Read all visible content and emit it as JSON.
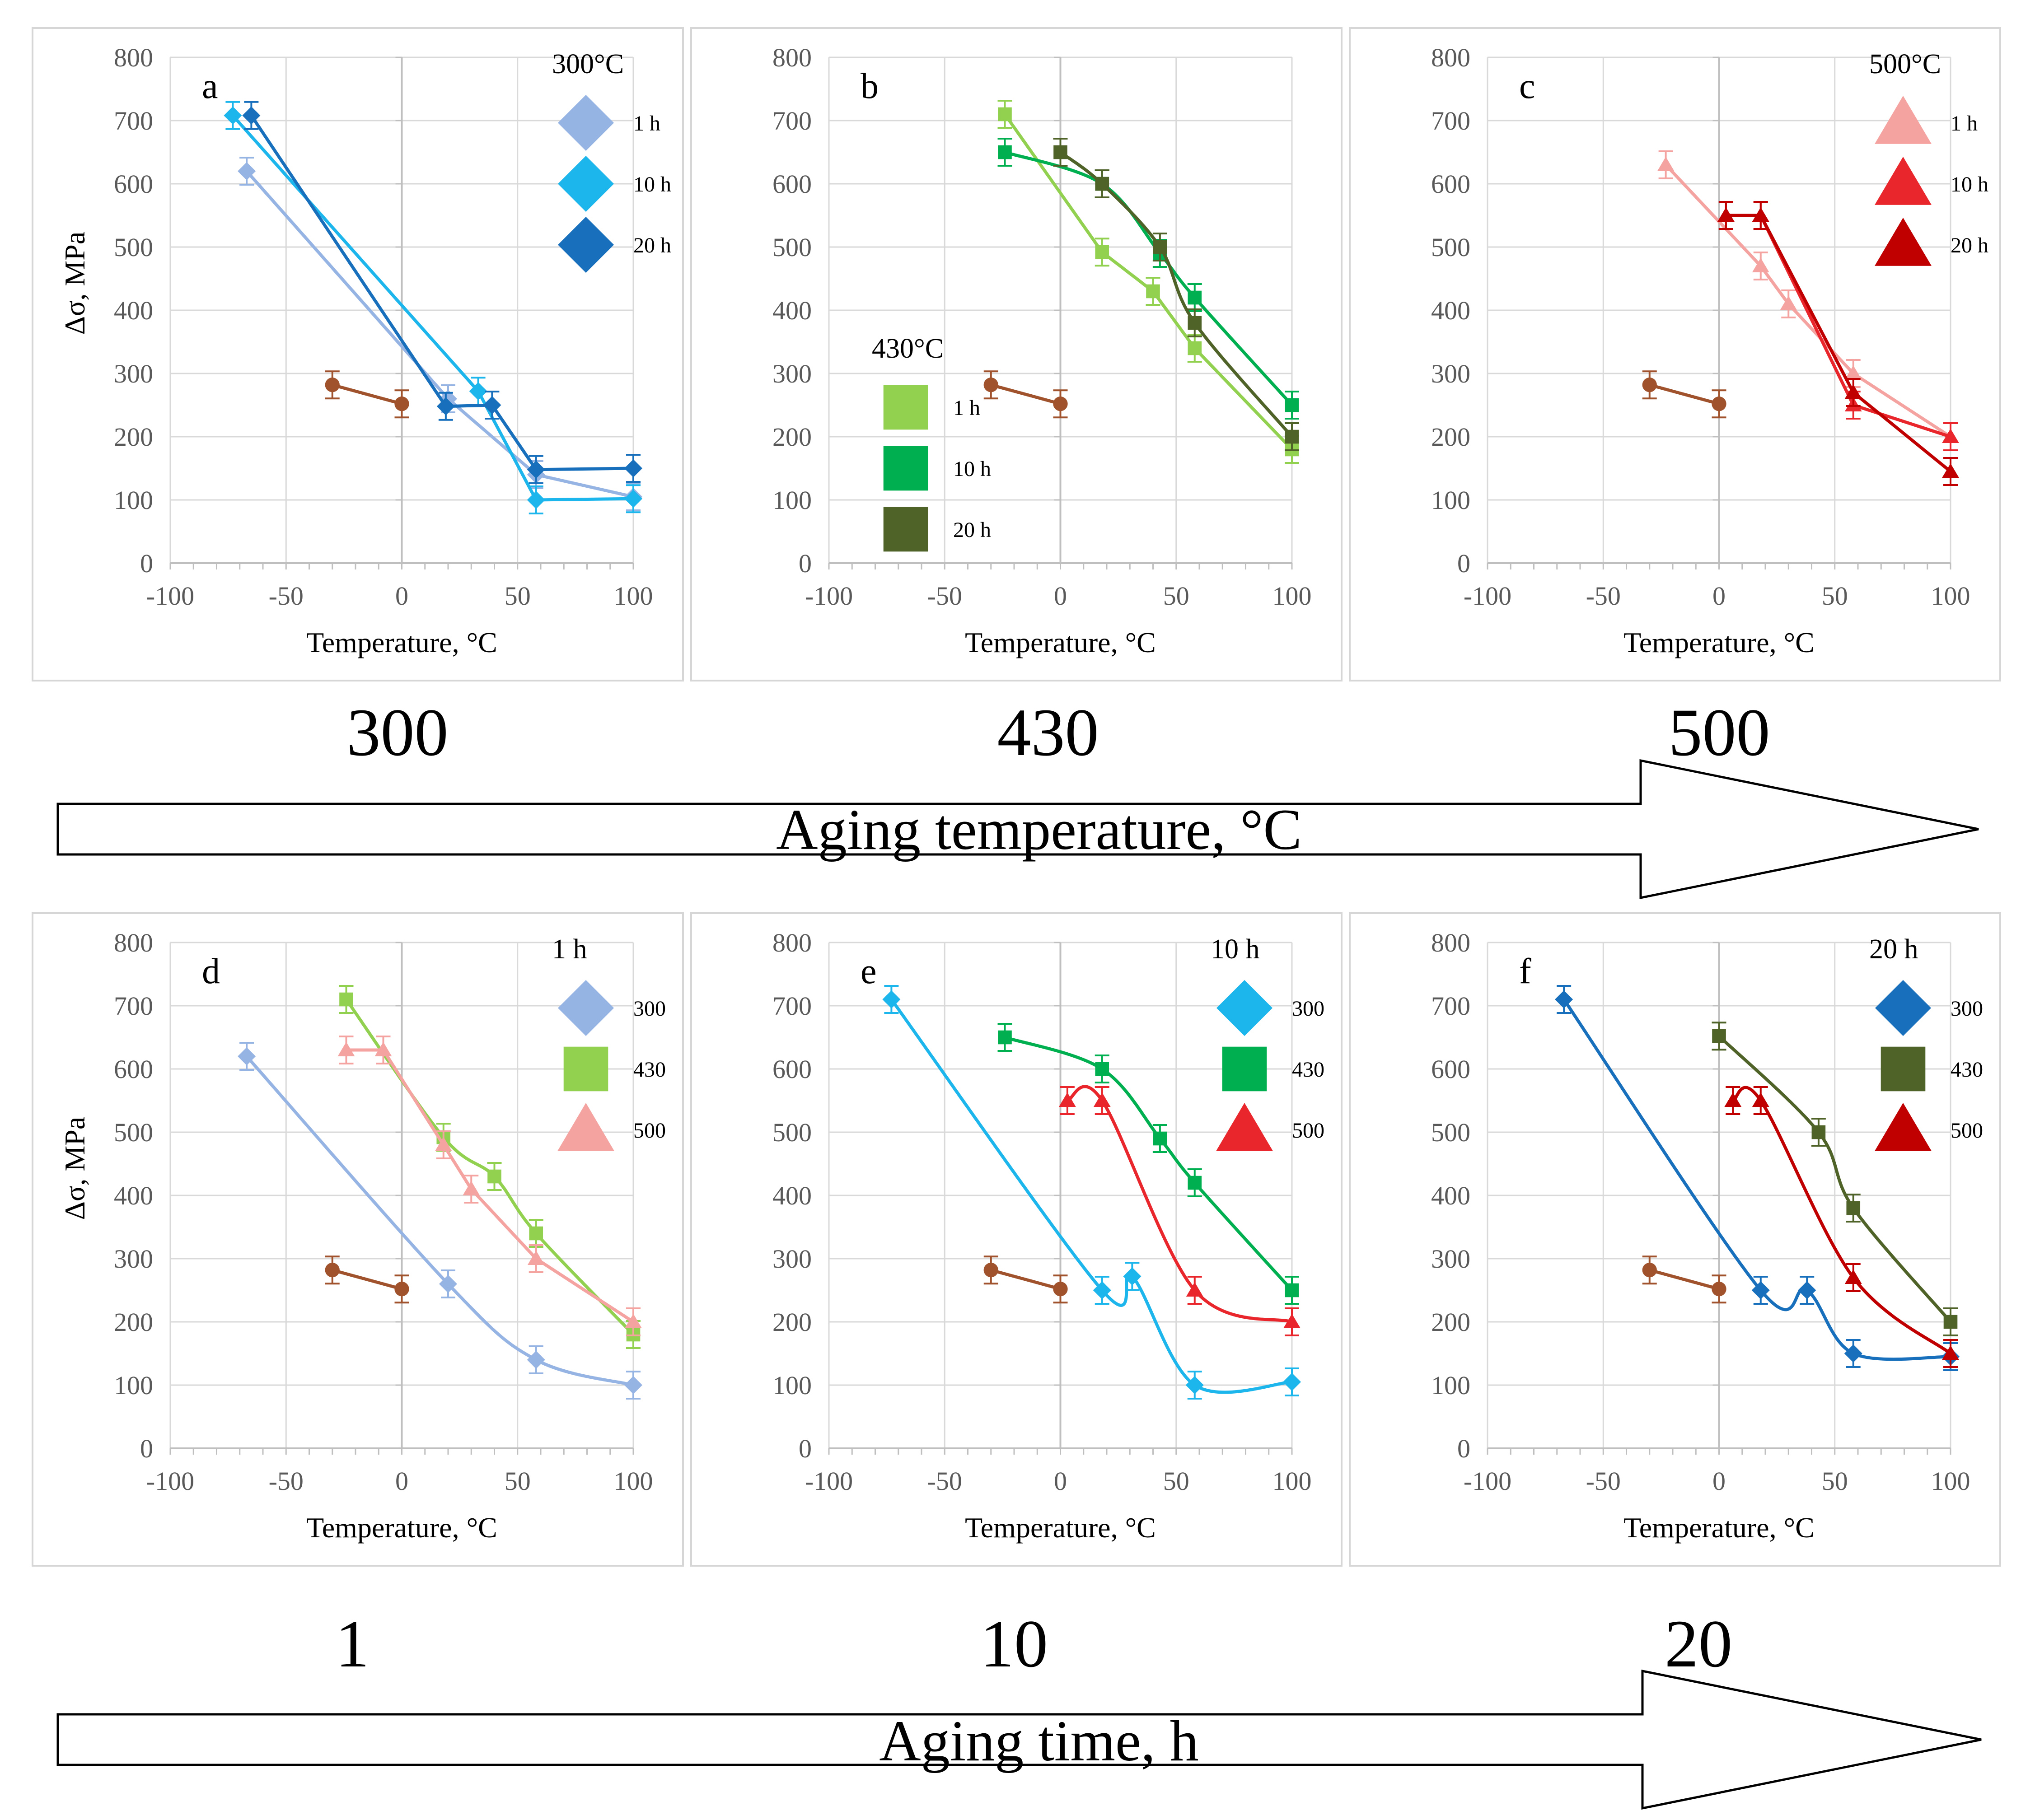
{
  "figure": {
    "row_axis_labels": [
      "Aging temperature, °C",
      "Aging time, h"
    ],
    "temperature_labels": [
      "300",
      "430",
      "500"
    ],
    "time_labels": [
      "1",
      "10",
      "20"
    ]
  },
  "colors": {
    "300_1h": "#95B3E3",
    "300_10h": "#1CB5EC",
    "300_20h": "#1870BD",
    "430_1h": "#92D050",
    "430_10h": "#00B050",
    "430_20h": "#4F6228",
    "500_1h": "#F4A3A0",
    "500_10h": "#E8262B",
    "500_20h": "#C00000",
    "base": "#A0522D"
  },
  "chart_data": [
    {
      "type": "line",
      "panel": "a",
      "xlabel": "Temperature, °C",
      "ylabel": "Δσ, MPa",
      "xlim": [
        -100,
        100
      ],
      "ylim": [
        0,
        800
      ],
      "xticks": [
        -100,
        -50,
        0,
        50,
        100
      ],
      "yticks": [
        0,
        100,
        200,
        300,
        400,
        500,
        600,
        700,
        800
      ],
      "legend_title": "300°C",
      "legend_position": "top-right",
      "series": [
        {
          "name": "1 h",
          "marker": "diamond",
          "color": "#95B3E3",
          "smooth": false,
          "x": [
            -67,
            20,
            58,
            100
          ],
          "y": [
            620,
            260,
            140,
            105
          ]
        },
        {
          "name": "10 h",
          "marker": "diamond",
          "color": "#1CB5EC",
          "smooth": false,
          "x": [
            -73,
            33,
            58,
            100
          ],
          "y": [
            708,
            272,
            100,
            102
          ]
        },
        {
          "name": "20 h",
          "marker": "diamond",
          "color": "#1870BD",
          "smooth": false,
          "x": [
            -65,
            19,
            39,
            58,
            100
          ],
          "y": [
            708,
            248,
            250,
            148,
            150
          ]
        },
        {
          "name": "",
          "marker": "circle",
          "color": "#A0522D",
          "smooth": false,
          "x": [
            -30,
            0
          ],
          "y": [
            282,
            252
          ]
        }
      ]
    },
    {
      "type": "line",
      "panel": "b",
      "xlabel": "Temperature, °C",
      "ylabel": "",
      "xlim": [
        -100,
        100
      ],
      "ylim": [
        0,
        800
      ],
      "xticks": [
        -100,
        -50,
        0,
        50,
        100
      ],
      "yticks": [
        0,
        100,
        200,
        300,
        400,
        500,
        600,
        700,
        800
      ],
      "legend_title": "430°C",
      "legend_position": "bottom-left",
      "series": [
        {
          "name": "1 h",
          "marker": "square",
          "color": "#92D050",
          "smooth": false,
          "x": [
            -24,
            18,
            40,
            58,
            100
          ],
          "y": [
            710,
            492,
            430,
            340,
            180
          ]
        },
        {
          "name": "10 h",
          "marker": "square",
          "color": "#00B050",
          "smooth": true,
          "x": [
            -24,
            18,
            43,
            58,
            100
          ],
          "y": [
            650,
            600,
            490,
            420,
            250
          ]
        },
        {
          "name": "20 h",
          "marker": "square",
          "color": "#4F6228",
          "smooth": true,
          "x": [
            0,
            18,
            43,
            58,
            100
          ],
          "y": [
            650,
            600,
            500,
            380,
            200
          ]
        },
        {
          "name": "",
          "marker": "circle",
          "color": "#A0522D",
          "smooth": false,
          "x": [
            -30,
            0
          ],
          "y": [
            282,
            252
          ]
        }
      ]
    },
    {
      "type": "line",
      "panel": "c",
      "xlabel": "Temperature, °C",
      "ylabel": "",
      "xlim": [
        -100,
        100
      ],
      "ylim": [
        0,
        800
      ],
      "xticks": [
        -100,
        -50,
        0,
        50,
        100
      ],
      "yticks": [
        0,
        100,
        200,
        300,
        400,
        500,
        600,
        700,
        800
      ],
      "legend_title": "500°C",
      "legend_position": "top-right",
      "series": [
        {
          "name": "1 h",
          "marker": "triangle",
          "color": "#F4A3A0",
          "smooth": false,
          "x": [
            -23,
            18,
            30,
            58,
            100
          ],
          "y": [
            630,
            470,
            410,
            300,
            200
          ]
        },
        {
          "name": "10 h",
          "marker": "triangle",
          "color": "#E8262B",
          "smooth": false,
          "x": [
            3,
            18,
            58,
            100
          ],
          "y": [
            550,
            550,
            250,
            200
          ]
        },
        {
          "name": "20 h",
          "marker": "triangle",
          "color": "#C00000",
          "smooth": false,
          "x": [
            3,
            18,
            58,
            100
          ],
          "y": [
            550,
            550,
            270,
            145
          ]
        },
        {
          "name": "",
          "marker": "circle",
          "color": "#A0522D",
          "smooth": false,
          "x": [
            -30,
            0
          ],
          "y": [
            282,
            252
          ]
        }
      ]
    },
    {
      "type": "line",
      "panel": "d",
      "xlabel": "Temperature, °C",
      "ylabel": "Δσ, MPa",
      "xlim": [
        -100,
        100
      ],
      "ylim": [
        0,
        800
      ],
      "xticks": [
        -100,
        -50,
        0,
        50,
        100
      ],
      "yticks": [
        0,
        100,
        200,
        300,
        400,
        500,
        600,
        700,
        800
      ],
      "legend_title": "1 h",
      "legend_position": "top-right",
      "series": [
        {
          "name": "300",
          "marker": "diamond",
          "color": "#95B3E3",
          "smooth": true,
          "x": [
            -67,
            20,
            58,
            100
          ],
          "y": [
            620,
            260,
            140,
            100
          ]
        },
        {
          "name": "430",
          "marker": "square",
          "color": "#92D050",
          "smooth": true,
          "x": [
            -24,
            18,
            40,
            58,
            100
          ],
          "y": [
            710,
            492,
            430,
            340,
            180
          ]
        },
        {
          "name": "500",
          "marker": "triangle",
          "color": "#F4A3A0",
          "smooth": false,
          "x": [
            -24,
            -8,
            18,
            30,
            58,
            100
          ],
          "y": [
            630,
            630,
            480,
            410,
            300,
            200
          ]
        },
        {
          "name": "",
          "marker": "circle",
          "color": "#A0522D",
          "smooth": false,
          "x": [
            -30,
            0
          ],
          "y": [
            282,
            252
          ]
        }
      ]
    },
    {
      "type": "line",
      "panel": "e",
      "xlabel": "Temperature, °C",
      "ylabel": "",
      "xlim": [
        -100,
        100
      ],
      "ylim": [
        0,
        800
      ],
      "xticks": [
        -100,
        -50,
        0,
        50,
        100
      ],
      "yticks": [
        0,
        100,
        200,
        300,
        400,
        500,
        600,
        700,
        800
      ],
      "legend_title": "10 h",
      "legend_position": "top-right",
      "series": [
        {
          "name": "300",
          "marker": "diamond",
          "color": "#1CB5EC",
          "smooth": true,
          "x": [
            -73,
            18,
            31,
            58,
            100
          ],
          "y": [
            710,
            250,
            272,
            100,
            105
          ]
        },
        {
          "name": "430",
          "marker": "square",
          "color": "#00B050",
          "smooth": true,
          "x": [
            -24,
            18,
            43,
            58,
            100
          ],
          "y": [
            650,
            600,
            490,
            420,
            250
          ]
        },
        {
          "name": "500",
          "marker": "triangle",
          "color": "#E8262B",
          "smooth": true,
          "x": [
            3,
            18,
            58,
            100
          ],
          "y": [
            550,
            550,
            250,
            200
          ]
        },
        {
          "name": "",
          "marker": "circle",
          "color": "#A0522D",
          "smooth": false,
          "x": [
            -30,
            0
          ],
          "y": [
            282,
            252
          ]
        }
      ]
    },
    {
      "type": "line",
      "panel": "f",
      "xlabel": "Temperature, °C",
      "ylabel": "",
      "xlim": [
        -100,
        100
      ],
      "ylim": [
        0,
        800
      ],
      "xticks": [
        -100,
        -50,
        0,
        50,
        100
      ],
      "yticks": [
        0,
        100,
        200,
        300,
        400,
        500,
        600,
        700,
        800
      ],
      "legend_title": "20 h",
      "legend_position": "top-right",
      "series": [
        {
          "name": "300",
          "marker": "diamond",
          "color": "#1870BD",
          "smooth": true,
          "x": [
            -67,
            18,
            38,
            58,
            100
          ],
          "y": [
            710,
            250,
            250,
            150,
            145
          ]
        },
        {
          "name": "430",
          "marker": "square",
          "color": "#4F6228",
          "smooth": true,
          "x": [
            0,
            43,
            58,
            100
          ],
          "y": [
            652,
            500,
            380,
            200
          ]
        },
        {
          "name": "500",
          "marker": "triangle",
          "color": "#C00000",
          "smooth": true,
          "x": [
            6,
            18,
            58,
            100
          ],
          "y": [
            550,
            550,
            270,
            150
          ]
        },
        {
          "name": "",
          "marker": "circle",
          "color": "#A0522D",
          "smooth": false,
          "x": [
            -30,
            0
          ],
          "y": [
            282,
            252
          ]
        }
      ]
    }
  ]
}
